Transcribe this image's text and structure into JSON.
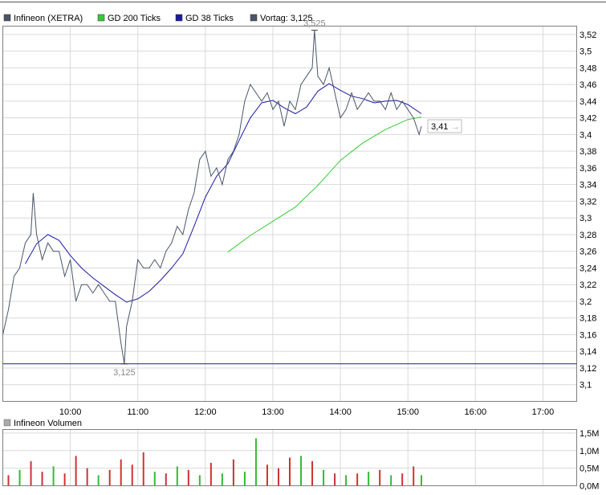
{
  "legend": {
    "items": [
      {
        "label": "Infineon (XETRA)",
        "color": "#4a5568"
      },
      {
        "label": "GD 200 Ticks",
        "color": "#33cc33"
      },
      {
        "label": "GD 38 Ticks",
        "color": "#1a1aa6"
      },
      {
        "label": "Vortag: 3,125",
        "color": "#4a5568"
      }
    ]
  },
  "colors": {
    "price": "#4a5568",
    "ma200": "#33cc33",
    "ma38": "#1a1aa6",
    "prev_close": "#1a1aa6",
    "grid": "#d9d9d9",
    "border": "#7f7f7f",
    "vol_up": "#33bb33",
    "vol_down": "#cc3333",
    "label_gray": "#888888"
  },
  "annotations": {
    "high": {
      "label": "3,525",
      "time": "13:37",
      "value": 3.525
    },
    "low": {
      "label": "3,125",
      "time": "10:48",
      "value": 3.125
    },
    "last": {
      "label": "3,41",
      "value": 3.41
    }
  },
  "chart_data": [
    {
      "type": "line",
      "title": "",
      "xlabel": "",
      "ylabel": "",
      "xlim": [
        "09:00",
        "17:30"
      ],
      "ylim": [
        3.08,
        3.53
      ],
      "grid": true,
      "legend_position": "top-left",
      "x_ticks": [
        "10:00",
        "11:00",
        "12:00",
        "13:00",
        "14:00",
        "15:00",
        "16:00",
        "17:00"
      ],
      "y_ticks": [
        "3,1",
        "3,12",
        "3,14",
        "3,16",
        "3,18",
        "3,2",
        "3,22",
        "3,24",
        "3,26",
        "3,28",
        "3,3",
        "3,32",
        "3,34",
        "3,36",
        "3,38",
        "3,4",
        "3,42",
        "3,44",
        "3,46",
        "3,48",
        "3,5",
        "3,52"
      ],
      "prev_close": 3.125,
      "series": [
        {
          "name": "Infineon (XETRA)",
          "x": [
            "09:00",
            "09:05",
            "09:10",
            "09:15",
            "09:20",
            "09:25",
            "09:27",
            "09:30",
            "09:35",
            "09:40",
            "09:45",
            "09:50",
            "09:55",
            "10:00",
            "10:05",
            "10:10",
            "10:15",
            "10:20",
            "10:25",
            "10:30",
            "10:35",
            "10:40",
            "10:45",
            "10:48",
            "10:50",
            "10:55",
            "11:00",
            "11:05",
            "11:10",
            "11:15",
            "11:20",
            "11:25",
            "11:30",
            "11:35",
            "11:40",
            "11:45",
            "11:50",
            "11:55",
            "12:00",
            "12:05",
            "12:10",
            "12:15",
            "12:20",
            "12:25",
            "12:30",
            "12:35",
            "12:40",
            "12:45",
            "12:50",
            "12:55",
            "13:00",
            "13:05",
            "13:10",
            "13:15",
            "13:20",
            "13:25",
            "13:30",
            "13:35",
            "13:37",
            "13:40",
            "13:45",
            "13:50",
            "13:55",
            "14:00",
            "14:05",
            "14:10",
            "14:15",
            "14:20",
            "14:25",
            "14:30",
            "14:35",
            "14:40",
            "14:45",
            "14:50",
            "14:55",
            "15:00",
            "15:05",
            "15:10",
            "15:12"
          ],
          "y": [
            3.16,
            3.19,
            3.23,
            3.24,
            3.27,
            3.28,
            3.33,
            3.28,
            3.25,
            3.27,
            3.26,
            3.26,
            3.23,
            3.25,
            3.2,
            3.22,
            3.22,
            3.21,
            3.22,
            3.21,
            3.2,
            3.2,
            3.15,
            3.125,
            3.17,
            3.2,
            3.25,
            3.24,
            3.24,
            3.25,
            3.24,
            3.26,
            3.27,
            3.29,
            3.28,
            3.31,
            3.33,
            3.37,
            3.38,
            3.35,
            3.36,
            3.34,
            3.37,
            3.38,
            3.4,
            3.44,
            3.46,
            3.45,
            3.44,
            3.45,
            3.43,
            3.44,
            3.41,
            3.44,
            3.43,
            3.46,
            3.47,
            3.48,
            3.525,
            3.47,
            3.46,
            3.48,
            3.45,
            3.42,
            3.43,
            3.45,
            3.43,
            3.44,
            3.45,
            3.44,
            3.44,
            3.43,
            3.45,
            3.43,
            3.44,
            3.43,
            3.42,
            3.4,
            3.41
          ]
        },
        {
          "name": "GD 200 Ticks",
          "x": [
            "12:20",
            "12:40",
            "13:00",
            "13:20",
            "13:40",
            "14:00",
            "14:20",
            "14:40",
            "15:00",
            "15:12"
          ],
          "y": [
            3.259,
            3.279,
            3.296,
            3.313,
            3.339,
            3.369,
            3.39,
            3.406,
            3.418,
            3.421
          ]
        },
        {
          "name": "GD 38 Ticks",
          "x": [
            "09:20",
            "09:30",
            "09:40",
            "09:50",
            "10:00",
            "10:10",
            "10:20",
            "10:30",
            "10:40",
            "10:50",
            "11:00",
            "11:10",
            "11:20",
            "11:30",
            "11:40",
            "11:50",
            "12:00",
            "12:10",
            "12:20",
            "12:30",
            "12:40",
            "12:50",
            "13:00",
            "13:10",
            "13:20",
            "13:30",
            "13:40",
            "13:50",
            "14:00",
            "14:10",
            "14:20",
            "14:30",
            "14:40",
            "14:50",
            "15:00",
            "15:12"
          ],
          "y": [
            3.245,
            3.269,
            3.28,
            3.273,
            3.255,
            3.24,
            3.228,
            3.218,
            3.208,
            3.199,
            3.203,
            3.212,
            3.225,
            3.24,
            3.257,
            3.29,
            3.325,
            3.35,
            3.365,
            3.393,
            3.42,
            3.438,
            3.441,
            3.432,
            3.425,
            3.433,
            3.452,
            3.461,
            3.453,
            3.446,
            3.443,
            3.438,
            3.44,
            3.441,
            3.436,
            3.425
          ]
        }
      ]
    },
    {
      "type": "bar",
      "title": "",
      "legend": [
        "Infineon Volumen"
      ],
      "legend_position": "top-left",
      "ylim": [
        0,
        1.6
      ],
      "unit": "M",
      "y_ticks": [
        "0,0M",
        "0,5M",
        "1,0M",
        "1,5M"
      ],
      "x": [
        "09:05",
        "09:15",
        "09:25",
        "09:35",
        "09:45",
        "09:55",
        "10:05",
        "10:15",
        "10:25",
        "10:35",
        "10:45",
        "10:55",
        "11:05",
        "11:15",
        "11:25",
        "11:35",
        "11:45",
        "11:55",
        "12:05",
        "12:15",
        "12:25",
        "12:35",
        "12:45",
        "12:55",
        "13:05",
        "13:15",
        "13:25",
        "13:35",
        "13:45",
        "13:55",
        "14:05",
        "14:15",
        "14:25",
        "14:35",
        "14:45",
        "14:55",
        "15:05",
        "15:12"
      ],
      "values": [
        0.3,
        0.45,
        0.7,
        0.4,
        0.55,
        0.35,
        0.85,
        0.5,
        0.3,
        0.45,
        0.75,
        0.6,
        0.95,
        0.4,
        0.35,
        0.55,
        0.45,
        0.3,
        0.65,
        0.35,
        0.75,
        0.4,
        1.35,
        0.6,
        0.5,
        0.8,
        0.85,
        0.7,
        0.45,
        0.35,
        0.3,
        0.35,
        0.4,
        0.45,
        0.3,
        0.35,
        0.55,
        0.3
      ],
      "direction": [
        "down",
        "up",
        "down",
        "down",
        "up",
        "down",
        "down",
        "down",
        "up",
        "down",
        "down",
        "down",
        "down",
        "up",
        "down",
        "up",
        "down",
        "up",
        "down",
        "up",
        "down",
        "up",
        "up",
        "down",
        "down",
        "down",
        "up",
        "down",
        "up",
        "down",
        "up",
        "down",
        "up",
        "down",
        "up",
        "down",
        "down",
        "up"
      ]
    }
  ]
}
